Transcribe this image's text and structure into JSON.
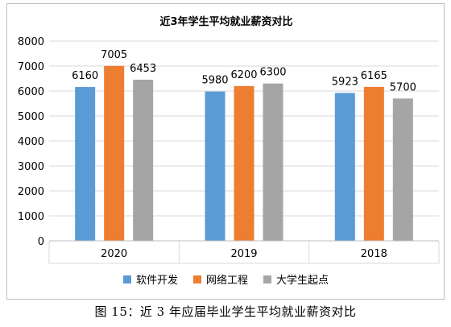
{
  "chart_data": {
    "type": "bar",
    "title": "近3年学生平均就业薪资对比",
    "categories": [
      "2020",
      "2019",
      "2018"
    ],
    "series": [
      {
        "name": "软件开发",
        "values": [
          6160,
          5980,
          5923
        ],
        "color": "#5b9bd5"
      },
      {
        "name": "网络工程",
        "values": [
          7005,
          6200,
          6165
        ],
        "color": "#ed7d31"
      },
      {
        "name": "大学生起点",
        "values": [
          6453,
          6300,
          5700
        ],
        "color": "#a5a5a5"
      }
    ],
    "ylim": [
      0,
      8000
    ],
    "yticks": [
      "0",
      "1000",
      "2000",
      "3000",
      "4000",
      "5000",
      "6000",
      "7000",
      "8000"
    ],
    "grid": true,
    "legend_position": "bottom"
  },
  "caption": "图 15：近 3 年应届毕业学生平均就业薪资对比"
}
